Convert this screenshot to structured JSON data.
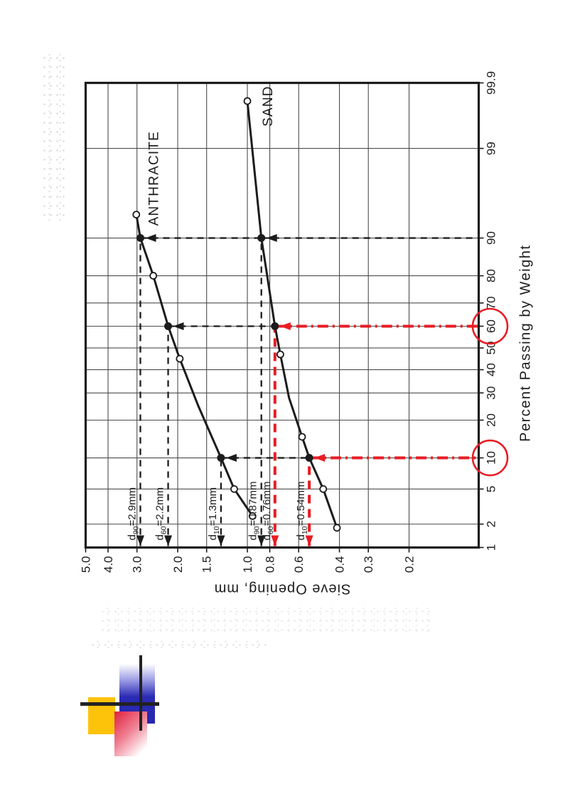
{
  "page": {
    "background": "#ffffff"
  },
  "chart_data": {
    "type": "line",
    "xlabel": "Percent Passing by Weight",
    "ylabel": "Sieve Opening, mm",
    "x_scale": "normal-probability",
    "y_scale": "log10",
    "x_range": [
      1,
      99.9
    ],
    "y_range": [
      0.1,
      5.0
    ],
    "x_ticks": [
      1,
      2,
      5,
      10,
      20,
      30,
      40,
      50,
      60,
      70,
      80,
      90,
      99,
      99.9
    ],
    "x_tick_labels": [
      "1",
      "2",
      "5",
      "10",
      "20",
      "30",
      "40",
      "50",
      "60",
      "70",
      "80",
      "90",
      "99",
      "99.9"
    ],
    "y_ticks": [
      5.0,
      4.0,
      3.0,
      2.0,
      1.5,
      1.0,
      0.8,
      0.6,
      0.4,
      0.3,
      0.2
    ],
    "y_tick_labels": [
      "5.0",
      "4.0",
      "3.0",
      "2.0",
      "1.5",
      "1.0",
      "0.8",
      "0.6",
      "0.4",
      "0.3",
      "0.2"
    ],
    "orientation_on_page": "rotated_90deg_ccw",
    "grid": true,
    "series": [
      {
        "name": "ANTHRACITE",
        "label_at": [
          97.6,
          2.43
        ],
        "points": [
          [
            2.5,
            0.95
          ],
          [
            5,
            1.14
          ],
          [
            10,
            1.3
          ],
          [
            25,
            1.63
          ],
          [
            45,
            1.96
          ],
          [
            60,
            2.2
          ],
          [
            80,
            2.55
          ],
          [
            90,
            2.9
          ],
          [
            94,
            3.02
          ]
        ],
        "open_markers": [
          [
            2.5,
            0.95
          ],
          [
            5,
            1.14
          ],
          [
            45,
            1.96
          ],
          [
            80,
            2.55
          ],
          [
            94,
            3.02
          ]
        ],
        "filled_markers": [
          [
            10,
            1.3
          ],
          [
            60,
            2.2
          ],
          [
            90,
            2.9
          ]
        ]
      },
      {
        "name": "SAND",
        "label_at": [
          99.76,
          0.78
        ],
        "points": [
          [
            1.8,
            0.41
          ],
          [
            5,
            0.47
          ],
          [
            10,
            0.54
          ],
          [
            15,
            0.58
          ],
          [
            28,
            0.66
          ],
          [
            47,
            0.72
          ],
          [
            60,
            0.76
          ],
          [
            90,
            0.87
          ],
          [
            99.8,
            1.0
          ]
        ],
        "open_markers": [
          [
            1.8,
            0.41
          ],
          [
            5,
            0.47
          ],
          [
            15,
            0.58
          ],
          [
            47,
            0.72
          ],
          [
            99.8,
            1.0
          ]
        ],
        "filled_markers": [
          [
            10,
            0.54
          ],
          [
            60,
            0.76
          ],
          [
            90,
            0.87
          ]
        ]
      }
    ],
    "annotations": [
      {
        "prefix": "d",
        "sub": "90",
        "rest": "=2.9mm",
        "d": 2.9,
        "p": 90
      },
      {
        "prefix": "d",
        "sub": "60",
        "rest": "=2.2mm",
        "d": 2.2,
        "p": 60
      },
      {
        "prefix": "d",
        "sub": "10",
        "rest": "=1.3mm",
        "d": 1.3,
        "p": 10
      },
      {
        "prefix": "d",
        "sub": "90",
        "rest": "=0.87mm",
        "d": 0.87,
        "p": 90
      },
      {
        "prefix": "d",
        "sub": "60",
        "rest": "=0.76mm",
        "d": 0.76,
        "p": 60
      },
      {
        "prefix": "d",
        "sub": "10",
        "rest": "=0.54mm",
        "d": 0.54,
        "p": 10
      }
    ],
    "guides_h": [
      {
        "d": 2.9,
        "to_p": 90,
        "color": "black"
      },
      {
        "d": 2.2,
        "to_p": 60,
        "color": "black"
      },
      {
        "d": 1.3,
        "to_p": 10,
        "color": "black"
      },
      {
        "d": 0.87,
        "to_p": 90,
        "color": "black"
      },
      {
        "d": 0.76,
        "to_p": 60,
        "color": "red"
      },
      {
        "d": 0.54,
        "to_p": 10,
        "color": "red"
      }
    ],
    "guides_v": [
      {
        "p": 90,
        "top_d": 2.9,
        "mid_d": 0.87,
        "lower_color": "black"
      },
      {
        "p": 60,
        "top_d": 2.2,
        "mid_d": 0.76,
        "lower_color": "red"
      },
      {
        "p": 10,
        "top_d": 1.3,
        "mid_d": 0.54,
        "lower_color": "red"
      }
    ],
    "highlighted_x_ticks": [
      60,
      10
    ],
    "colors": {
      "ink": "#1c1c1c",
      "grid": "#4d4d4d",
      "red": "#e81c24"
    }
  },
  "logo": {
    "colors": {
      "yellow": "#fcc30a",
      "blue": "#2b2bb4",
      "pink": "#e22040",
      "bar": "#222222"
    }
  }
}
